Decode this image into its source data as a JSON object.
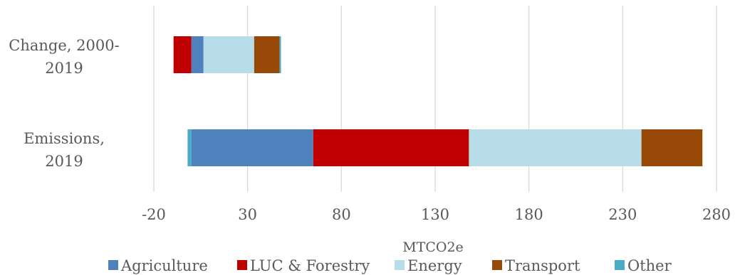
{
  "chart_data": {
    "type": "bar",
    "orientation": "horizontal",
    "stacked": true,
    "categories": [
      "Change, 2000-2019",
      "Emissions, 2019"
    ],
    "category_labels": [
      [
        "Change, 2000-",
        "2019"
      ],
      [
        "Emissions,",
        "2019"
      ]
    ],
    "series": [
      {
        "name": "Agriculture",
        "color": "#4f81bd",
        "values": [
          6.5,
          65
        ]
      },
      {
        "name": "LUC & Forestry",
        "color": "#c00000",
        "values": [
          -9.5,
          83
        ]
      },
      {
        "name": "Energy",
        "color": "#b7dde8",
        "values": [
          27,
          92
        ]
      },
      {
        "name": "Transport",
        "color": "#984807",
        "values": [
          13.5,
          32.5
        ]
      },
      {
        "name": "Other",
        "color": "#4bacc6",
        "values": [
          0.8,
          -2
        ]
      }
    ],
    "xlabel": "MTCO2e",
    "xlim": [
      -20,
      280
    ],
    "xticks": [
      -20,
      30,
      80,
      130,
      180,
      230,
      280
    ],
    "grid": "vertical",
    "legend_position": "bottom"
  }
}
